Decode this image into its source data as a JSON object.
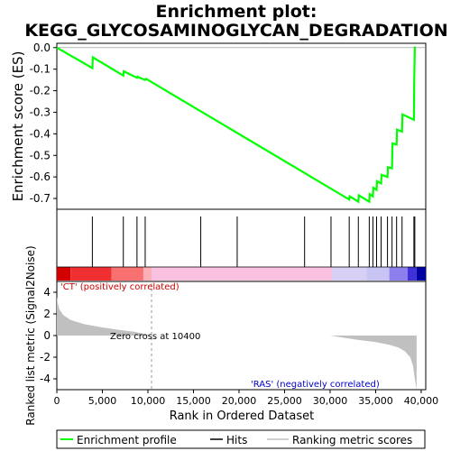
{
  "chart_data": {
    "type": "line",
    "title_line1": "Enrichment plot:",
    "title_line2": "KEGG_GLYCOSAMINOGLYCAN_DEGRADATION",
    "es_panel": {
      "ylabel": "Enrichment score (ES)",
      "ylim": [
        -0.75,
        0.02
      ],
      "yticks": [
        "0.0",
        "-0.1",
        "-0.2",
        "-0.3",
        "-0.4",
        "-0.5",
        "-0.6",
        "-0.7"
      ],
      "ytick_values": [
        0.0,
        -0.1,
        -0.2,
        -0.3,
        -0.4,
        -0.5,
        -0.6,
        -0.7
      ],
      "color": "#00ff00",
      "series": {
        "name": "Enrichment profile",
        "x": [
          0,
          3900,
          3950,
          7300,
          7350,
          8800,
          8850,
          9100,
          9700,
          9800,
          32100,
          32150,
          33100,
          33150,
          34300,
          34350,
          34700,
          34750,
          35100,
          35150,
          35600,
          35650,
          36300,
          36350,
          36800,
          36850,
          37300,
          37350,
          37900,
          37950,
          39200,
          39230,
          39300
        ],
        "y": [
          0.0,
          -0.095,
          -0.045,
          -0.13,
          -0.11,
          -0.14,
          -0.135,
          -0.14,
          -0.15,
          -0.145,
          -0.705,
          -0.69,
          -0.715,
          -0.685,
          -0.715,
          -0.68,
          -0.69,
          -0.65,
          -0.66,
          -0.62,
          -0.63,
          -0.59,
          -0.6,
          -0.555,
          -0.56,
          -0.445,
          -0.45,
          -0.38,
          -0.39,
          -0.31,
          -0.335,
          -0.17,
          0.005
        ]
      }
    },
    "hits": {
      "label": "Hits",
      "positions": [
        3900,
        7300,
        8800,
        9700,
        15800,
        19800,
        27200,
        30100,
        32100,
        33100,
        34300,
        34700,
        35100,
        35600,
        36300,
        36800,
        37300,
        37900,
        39200,
        39300
      ]
    },
    "rank_bar": {
      "stops": [
        {
          "x": 0,
          "color": "#d40000"
        },
        {
          "x": 1500,
          "color": "#f03030"
        },
        {
          "x": 6000,
          "color": "#f87070"
        },
        {
          "x": 9500,
          "color": "#fbb0b8"
        },
        {
          "x": 10400,
          "color": "#f9c0e0"
        },
        {
          "x": 30000,
          "color": "#f9c0e0"
        },
        {
          "x": 30200,
          "color": "#d8d0f4"
        },
        {
          "x": 34000,
          "color": "#c8c4f4"
        },
        {
          "x": 36500,
          "color": "#8c80ee"
        },
        {
          "x": 38500,
          "color": "#4030d8"
        },
        {
          "x": 39500,
          "color": "#0000a0"
        }
      ]
    },
    "metric_panel": {
      "ylabel": "Ranked list metric (Signal2Noise)",
      "ylim": [
        -5,
        5
      ],
      "yticks": [
        "4",
        "2",
        "0",
        "-2",
        "-4"
      ],
      "ytick_values": [
        4,
        2,
        0,
        -2,
        -4
      ],
      "fill_color": "#c0c0c0",
      "series": {
        "name": "Ranking metric scores",
        "x": [
          0,
          100,
          300,
          700,
          1500,
          3000,
          5000,
          7000,
          8500,
          10400,
          30000,
          33000,
          35000,
          36500,
          37500,
          38200,
          38800,
          39100,
          39300,
          39500
        ],
        "y": [
          3.6,
          3.0,
          2.4,
          1.9,
          1.45,
          1.05,
          0.75,
          0.5,
          0.35,
          0.0,
          0.0,
          -0.4,
          -0.6,
          -0.85,
          -1.1,
          -1.45,
          -2.0,
          -2.8,
          -4.0,
          -5.0
        ]
      },
      "zero_cross_label": "Zero cross at 10400",
      "zero_cross_x": 10400,
      "pos_label": "'CT' (positively correlated)",
      "neg_label": "'RAS' (negatively correlated)"
    },
    "xaxis": {
      "label": "Rank in Ordered Dataset",
      "xlim": [
        0,
        40500
      ],
      "ticks": [
        "0",
        "5,000",
        "10,000",
        "15,000",
        "20,000",
        "25,000",
        "30,000",
        "35,000",
        "40,000"
      ],
      "tick_values": [
        0,
        5000,
        10000,
        15000,
        20000,
        25000,
        30000,
        35000,
        40000
      ]
    },
    "legend": {
      "entries": [
        {
          "label": "Enrichment profile",
          "color": "#00ff00"
        },
        {
          "label": "Hits",
          "color": "#000000"
        },
        {
          "label": "Ranking metric scores",
          "color": "#c0c0c0"
        }
      ]
    }
  }
}
